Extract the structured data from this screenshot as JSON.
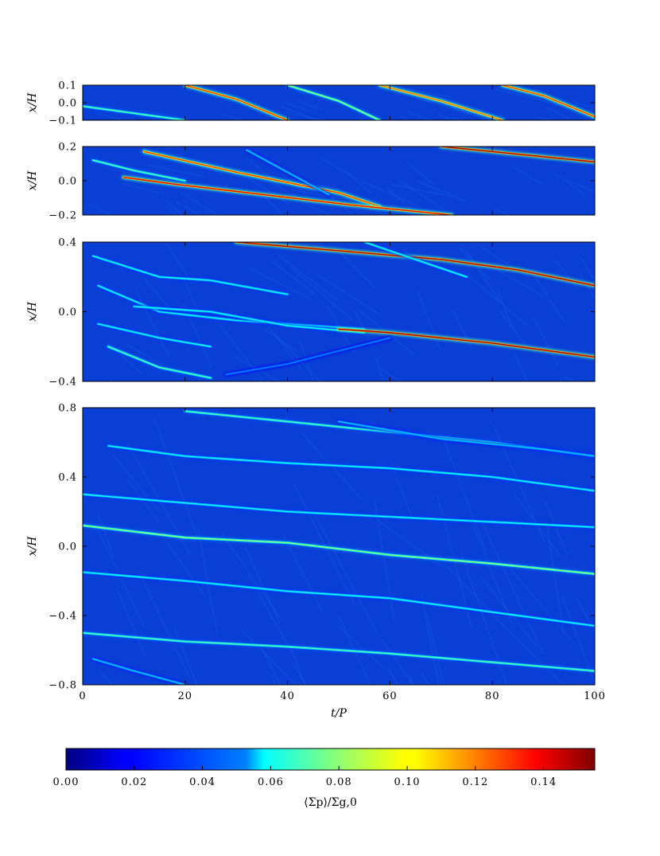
{
  "chart_data": {
    "type": "heatmap",
    "shared_x": {
      "label": "t/P",
      "range": [
        0,
        100
      ],
      "ticks": [
        0,
        20,
        40,
        60,
        80,
        100
      ],
      "tick_labels": [
        "0",
        "20",
        "40",
        "60",
        "80",
        "100"
      ]
    },
    "panels": [
      {
        "ylabel": "x/H",
        "yrange": [
          -0.1,
          0.1
        ],
        "ticks": [
          0.1,
          0.0,
          -0.1
        ],
        "tick_labels": [
          "0.1",
          "0.0",
          "−0.1"
        ],
        "filaments": [
          {
            "t": [
              0,
              10,
              20
            ],
            "x": [
              -0.02,
              -0.06,
              -0.1
            ],
            "peak": 0.07
          },
          {
            "t": [
              20,
              30,
              40
            ],
            "x": [
              0.1,
              0.02,
              -0.1
            ],
            "peak": 0.13
          },
          {
            "t": [
              40,
              50,
              58
            ],
            "x": [
              0.1,
              0.01,
              -0.1
            ],
            "peak": 0.08
          },
          {
            "t": [
              58,
              70,
              82
            ],
            "x": [
              0.1,
              0.01,
              -0.1
            ],
            "peak": 0.12
          },
          {
            "t": [
              82,
              90,
              100
            ],
            "x": [
              0.1,
              0.04,
              -0.08
            ],
            "peak": 0.13
          }
        ]
      },
      {
        "ylabel": "x/H",
        "yrange": [
          -0.2,
          0.2
        ],
        "ticks": [
          0.2,
          0.0,
          -0.2
        ],
        "tick_labels": [
          "0.2",
          "0.0",
          "−0.2"
        ],
        "filaments": [
          {
            "t": [
              2,
              10,
              20
            ],
            "x": [
              0.12,
              0.06,
              0.0
            ],
            "peak": 0.07
          },
          {
            "t": [
              12,
              30,
              50,
              58
            ],
            "x": [
              0.17,
              0.05,
              -0.07,
              -0.15
            ],
            "peak": 0.13
          },
          {
            "t": [
              8,
              18,
              35,
              52,
              72
            ],
            "x": [
              0.02,
              -0.02,
              -0.08,
              -0.14,
              -0.2
            ],
            "peak": 0.14
          },
          {
            "t": [
              70,
              80,
              90,
              100
            ],
            "x": [
              0.2,
              0.17,
              0.14,
              0.11
            ],
            "peak": 0.15
          },
          {
            "t": [
              32,
              40,
              48
            ],
            "x": [
              0.18,
              0.05,
              -0.08
            ],
            "peak": 0.05
          }
        ]
      },
      {
        "ylabel": "x/H",
        "yrange": [
          -0.4,
          0.4
        ],
        "ticks": [
          0.4,
          0.0,
          -0.4
        ],
        "tick_labels": [
          "0.4",
          "0.0",
          "−0.4"
        ],
        "filaments": [
          {
            "t": [
              2,
              15,
              25,
              40
            ],
            "x": [
              0.32,
              0.2,
              0.18,
              0.1
            ],
            "peak": 0.06
          },
          {
            "t": [
              30,
              50,
              70,
              85,
              100
            ],
            "x": [
              0.4,
              0.35,
              0.3,
              0.24,
              0.15
            ],
            "peak": 0.15
          },
          {
            "t": [
              55,
              65,
              75
            ],
            "x": [
              0.4,
              0.3,
              0.2
            ],
            "peak": 0.06
          },
          {
            "t": [
              3,
              15,
              30,
              45,
              55
            ],
            "x": [
              0.15,
              0.0,
              -0.05,
              -0.08,
              -0.1
            ],
            "peak": 0.06
          },
          {
            "t": [
              10,
              25,
              40,
              55
            ],
            "x": [
              0.03,
              0.0,
              -0.08,
              -0.12
            ],
            "peak": 0.06
          },
          {
            "t": [
              50,
              60,
              80,
              100
            ],
            "x": [
              -0.1,
              -0.12,
              -0.18,
              -0.26
            ],
            "peak": 0.15
          },
          {
            "t": [
              3,
              15,
              25
            ],
            "x": [
              -0.07,
              -0.15,
              -0.2
            ],
            "peak": 0.06
          },
          {
            "t": [
              5,
              15,
              25
            ],
            "x": [
              -0.2,
              -0.32,
              -0.38
            ],
            "peak": 0.07
          },
          {
            "t": [
              28,
              40,
              60
            ],
            "x": [
              -0.36,
              -0.3,
              -0.15
            ],
            "peak": 0.04
          }
        ]
      },
      {
        "ylabel": "x/H",
        "yrange": [
          -0.8,
          0.8
        ],
        "ticks": [
          0.8,
          0.4,
          0.0,
          -0.4,
          -0.8
        ],
        "tick_labels": [
          "0.8",
          "0.4",
          "0.0",
          "−0.4",
          "−0.8"
        ],
        "filaments": [
          {
            "t": [
              20,
              40,
              60,
              80,
              100
            ],
            "x": [
              0.78,
              0.72,
              0.66,
              0.6,
              0.52
            ],
            "peak": 0.07
          },
          {
            "t": [
              5,
              20,
              40,
              60,
              80,
              100
            ],
            "x": [
              0.58,
              0.52,
              0.48,
              0.45,
              0.4,
              0.32
            ],
            "peak": 0.06
          },
          {
            "t": [
              0,
              20,
              40,
              60,
              80,
              100
            ],
            "x": [
              0.3,
              0.25,
              0.2,
              0.17,
              0.14,
              0.11
            ],
            "peak": 0.06
          },
          {
            "t": [
              0,
              20,
              40,
              60,
              80,
              100
            ],
            "x": [
              0.12,
              0.05,
              0.02,
              -0.05,
              -0.1,
              -0.16
            ],
            "peak": 0.08
          },
          {
            "t": [
              0,
              20,
              40,
              60,
              80,
              100
            ],
            "x": [
              -0.15,
              -0.2,
              -0.26,
              -0.3,
              -0.38,
              -0.46
            ],
            "peak": 0.06
          },
          {
            "t": [
              0,
              20,
              40,
              60,
              80,
              100
            ],
            "x": [
              -0.5,
              -0.55,
              -0.58,
              -0.62,
              -0.67,
              -0.72
            ],
            "peak": 0.07
          },
          {
            "t": [
              50,
              70,
              90,
              100
            ],
            "x": [
              0.72,
              0.62,
              0.56,
              0.52
            ],
            "peak": 0.05
          },
          {
            "t": [
              2,
              10,
              20
            ],
            "x": [
              -0.65,
              -0.72,
              -0.8
            ],
            "peak": 0.05
          }
        ]
      }
    ],
    "colorbar": {
      "label": "⟨Σp⟩/Σg,0",
      "range": [
        0.0,
        0.155
      ],
      "ticks": [
        0.0,
        0.02,
        0.04,
        0.06,
        0.08,
        0.1,
        0.12,
        0.14
      ],
      "tick_labels": [
        "0.00",
        "0.02",
        "0.04",
        "0.06",
        "0.08",
        "0.10",
        "0.12",
        "0.14"
      ],
      "colormap": "jet"
    }
  }
}
